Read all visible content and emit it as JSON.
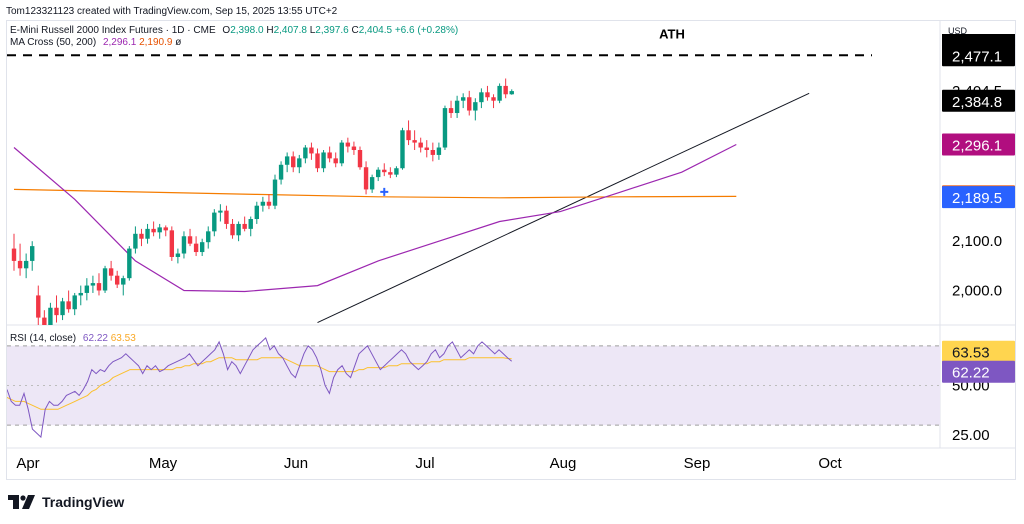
{
  "top_caption": "Tom123321123 created with TradingView.com, Sep 15, 2025 13:55 UTC+2",
  "legend": {
    "symbol": "E-Mini Russell 2000 Index Futures · 1D · CME",
    "o_label": "O",
    "o": "2,398.0",
    "h_label": "H",
    "h": "2,407.8",
    "l_label": "L",
    "l": "2,397.6",
    "c_label": "C",
    "c": "2,404.5",
    "change": "+6.6 (+0.28%)",
    "ma_label": "MA Cross (50, 200)",
    "ma_fast": "2,296.1",
    "ma_slow": "2,190.9",
    "ma_flag": "ø",
    "rsi_label": "RSI (14, close)",
    "rsi_value": "62.22",
    "rsi_ma": "63.53"
  },
  "currency": "USD",
  "footer": {
    "brand": "TradingView"
  },
  "colors": {
    "up": "#089981",
    "down": "#f23645",
    "ma_fast": "#9c27b0",
    "ma_slow": "#f57c00",
    "rsi_line": "#7e57c2",
    "rsi_ma": "#fbc02d",
    "rsi_band": "#ede7f6"
  },
  "chart_data": [
    {
      "type": "candlestick",
      "title": "E-Mini Russell 2000 Index Futures · 1D · CME",
      "x_ticks": [
        "Apr",
        "May",
        "Jun",
        "Jul",
        "Aug",
        "Sep",
        "Oct"
      ],
      "y_ticks": [
        "2,000.0",
        "2,100.0",
        "2,404.5"
      ],
      "ylim": [
        1930,
        2500
      ],
      "ath_label": "ATH",
      "ath_level": 2477.1,
      "price_labels": [
        {
          "text": "2,477.1",
          "value": 2477.1,
          "kind": "ath"
        },
        {
          "text": "2,384.8",
          "value": 2384.8,
          "kind": "dark"
        },
        {
          "text": "2,296.1",
          "value": 2296.1,
          "kind": "ma_fast"
        },
        {
          "text": "2,190.9",
          "value": 2190.9,
          "kind": "ma_slow"
        },
        {
          "text": "2,189.5",
          "value": 2189.5,
          "kind": "blue"
        }
      ],
      "ohlc": [
        [
          2085,
          2115,
          2040,
          2060
        ],
        [
          2060,
          2095,
          2030,
          2045
        ],
        [
          2045,
          2075,
          2025,
          2060
        ],
        [
          2060,
          2100,
          2040,
          2090
        ],
        [
          1990,
          2010,
          1925,
          1945
        ],
        [
          1945,
          1960,
          1900,
          1930
        ],
        [
          1930,
          1975,
          1910,
          1965
        ],
        [
          1965,
          1990,
          1935,
          1950
        ],
        [
          1950,
          1985,
          1940,
          1978
        ],
        [
          1978,
          2000,
          1955,
          1962
        ],
        [
          1962,
          1995,
          1950,
          1990
        ],
        [
          1990,
          2010,
          1970,
          1995
        ],
        [
          1995,
          2025,
          1980,
          2010
        ],
        [
          2010,
          2030,
          1995,
          2015
        ],
        [
          2015,
          2035,
          1990,
          2000
        ],
        [
          2000,
          2050,
          1995,
          2045
        ],
        [
          2045,
          2060,
          2020,
          2030
        ],
        [
          2030,
          2040,
          2005,
          2012
        ],
        [
          2012,
          2030,
          1990,
          2025
        ],
        [
          2025,
          2090,
          2020,
          2085
        ],
        [
          2085,
          2130,
          2075,
          2115
        ],
        [
          2115,
          2125,
          2090,
          2105
        ],
        [
          2105,
          2135,
          2095,
          2125
        ],
        [
          2125,
          2140,
          2110,
          2118
        ],
        [
          2118,
          2135,
          2105,
          2128
        ],
        [
          2128,
          2132,
          2110,
          2122
        ],
        [
          2122,
          2130,
          2060,
          2068
        ],
        [
          2068,
          2085,
          2055,
          2075
        ],
        [
          2075,
          2120,
          2065,
          2110
        ],
        [
          2110,
          2125,
          2090,
          2095
        ],
        [
          2095,
          2110,
          2070,
          2078
        ],
        [
          2078,
          2105,
          2070,
          2098
        ],
        [
          2098,
          2130,
          2085,
          2120
        ],
        [
          2120,
          2165,
          2110,
          2158
        ],
        [
          2158,
          2175,
          2140,
          2162
        ],
        [
          2162,
          2172,
          2125,
          2135
        ],
        [
          2135,
          2145,
          2105,
          2112
        ],
        [
          2112,
          2140,
          2100,
          2135
        ],
        [
          2135,
          2150,
          2120,
          2125
        ],
        [
          2125,
          2150,
          2110,
          2145
        ],
        [
          2145,
          2180,
          2135,
          2172
        ],
        [
          2172,
          2190,
          2160,
          2180
        ],
        [
          2180,
          2195,
          2165,
          2172
        ],
        [
          2172,
          2235,
          2165,
          2225
        ],
        [
          2225,
          2262,
          2215,
          2255
        ],
        [
          2255,
          2280,
          2240,
          2272
        ],
        [
          2272,
          2282,
          2240,
          2250
        ],
        [
          2250,
          2275,
          2238,
          2268
        ],
        [
          2268,
          2295,
          2258,
          2290
        ],
        [
          2290,
          2300,
          2265,
          2278
        ],
        [
          2278,
          2288,
          2240,
          2248
        ],
        [
          2248,
          2285,
          2240,
          2280
        ],
        [
          2280,
          2292,
          2260,
          2268
        ],
        [
          2268,
          2280,
          2250,
          2258
        ],
        [
          2258,
          2305,
          2252,
          2300
        ],
        [
          2300,
          2310,
          2280,
          2292
        ],
        [
          2292,
          2302,
          2275,
          2285
        ],
        [
          2285,
          2292,
          2245,
          2250
        ],
        [
          2250,
          2262,
          2195,
          2205
        ],
        [
          2205,
          2235,
          2198,
          2230
        ],
        [
          2230,
          2250,
          2222,
          2245
        ],
        [
          2245,
          2258,
          2232,
          2240
        ],
        [
          2240,
          2250,
          2228,
          2235
        ],
        [
          2235,
          2252,
          2230,
          2248
        ],
        [
          2248,
          2330,
          2245,
          2325
        ],
        [
          2325,
          2345,
          2295,
          2305
        ],
        [
          2305,
          2325,
          2285,
          2300
        ],
        [
          2300,
          2310,
          2280,
          2290
        ],
        [
          2290,
          2305,
          2270,
          2285
        ],
        [
          2285,
          2300,
          2262,
          2275
        ],
        [
          2275,
          2300,
          2265,
          2290
        ],
        [
          2290,
          2375,
          2285,
          2370
        ],
        [
          2370,
          2385,
          2350,
          2360
        ],
        [
          2360,
          2395,
          2350,
          2385
        ],
        [
          2385,
          2400,
          2370,
          2392
        ],
        [
          2392,
          2405,
          2355,
          2365
        ],
        [
          2365,
          2390,
          2345,
          2382
        ],
        [
          2382,
          2410,
          2370,
          2402
        ],
        [
          2402,
          2415,
          2385,
          2392
        ],
        [
          2392,
          2398,
          2370,
          2385
        ],
        [
          2385,
          2420,
          2380,
          2415
        ],
        [
          2415,
          2430,
          2390,
          2398
        ],
        [
          2398,
          2408,
          2397,
          2404.5
        ]
      ],
      "ma_fast_points": [
        [
          0,
          2290
        ],
        [
          10,
          2185
        ],
        [
          20,
          2060
        ],
        [
          28,
          2000
        ],
        [
          38,
          1998
        ],
        [
          50,
          2010
        ],
        [
          60,
          2060
        ],
        [
          70,
          2100
        ],
        [
          80,
          2140
        ],
        [
          90,
          2160
        ],
        [
          100,
          2200
        ],
        [
          110,
          2240
        ],
        [
          119,
          2296.1
        ]
      ],
      "ma_slow_points": [
        [
          0,
          2205
        ],
        [
          20,
          2200
        ],
        [
          40,
          2195
        ],
        [
          60,
          2190
        ],
        [
          80,
          2188
        ],
        [
          100,
          2190
        ],
        [
          119,
          2190.9
        ]
      ],
      "trendline": {
        "from": [
          50,
          1935
        ],
        "to": [
          131,
          2400
        ]
      }
    },
    {
      "type": "line",
      "title": "RSI (14, close)",
      "y_ticks": [
        "25.00",
        "50.00"
      ],
      "ylim": [
        20,
        80
      ],
      "band": [
        30,
        70
      ],
      "midline": 50,
      "value_labels": [
        {
          "text": "63.53",
          "value": 63.53,
          "kind": "rsi_ma"
        },
        {
          "text": "62.22",
          "value": 62.22,
          "kind": "rsi"
        }
      ],
      "rsi": [
        48,
        42,
        40,
        40,
        46,
        38,
        28,
        26,
        24,
        38,
        42,
        40,
        40,
        42,
        45,
        46,
        47,
        45,
        48,
        52,
        58,
        56,
        58,
        57,
        60,
        62,
        63,
        64,
        66,
        64,
        62,
        60,
        56,
        60,
        58,
        60,
        57,
        58,
        60,
        61,
        62,
        63,
        64,
        66,
        63,
        60,
        62,
        64,
        66,
        68,
        72,
        66,
        58,
        62,
        60,
        56,
        60,
        64,
        68,
        70,
        72,
        74,
        68,
        70,
        66,
        64,
        60,
        56,
        54,
        60,
        66,
        70,
        68,
        64,
        58,
        50,
        46,
        54,
        58,
        60,
        56,
        54,
        60,
        66,
        68,
        70,
        66,
        62,
        58,
        60,
        62,
        64,
        66,
        68,
        66,
        62,
        60,
        58,
        60,
        62,
        66,
        68,
        64,
        66,
        70,
        72,
        68,
        64,
        66,
        68,
        66,
        70,
        72,
        70,
        68,
        66,
        68,
        66,
        64,
        62.22
      ],
      "rsi_ma": [
        44,
        43,
        42,
        42,
        42,
        41,
        40,
        39,
        38,
        38,
        38,
        38,
        38,
        39,
        40,
        41,
        42,
        43,
        44,
        45,
        47,
        48,
        50,
        51,
        52,
        54,
        55,
        56,
        57,
        58,
        58,
        58,
        58,
        58,
        58,
        58,
        58,
        58,
        58,
        58,
        59,
        59,
        60,
        60,
        61,
        61,
        61,
        62,
        62,
        63,
        64,
        64,
        64,
        64,
        63,
        63,
        63,
        63,
        63,
        63,
        64,
        64,
        64,
        64,
        64,
        64,
        63,
        62,
        61,
        60,
        60,
        60,
        60,
        60,
        59,
        58,
        57,
        57,
        57,
        57,
        57,
        57,
        57,
        58,
        58,
        59,
        59,
        59,
        59,
        59,
        60,
        60,
        60,
        61,
        61,
        61,
        61,
        61,
        61,
        61,
        62,
        62,
        62,
        63,
        63,
        63,
        63,
        63,
        63,
        64,
        64,
        64,
        64,
        64,
        64,
        64,
        64,
        64,
        63.6,
        63.53
      ]
    }
  ]
}
